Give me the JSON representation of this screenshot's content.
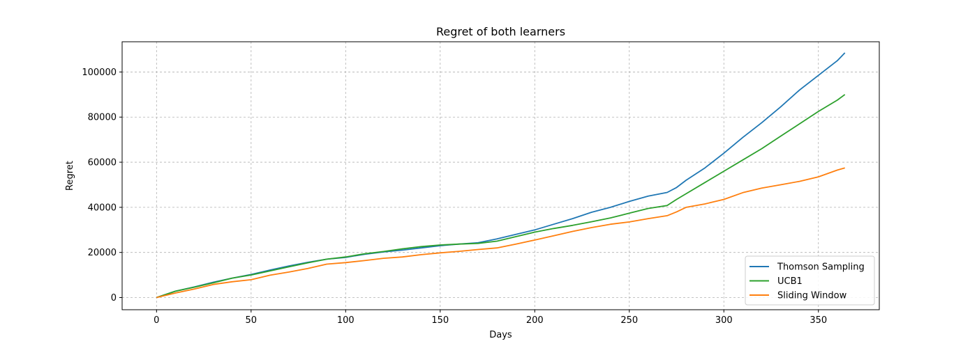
{
  "chart_data": {
    "type": "line",
    "title": "Regret of both learners",
    "xlabel": "Days",
    "ylabel": "Regret",
    "xlim": [
      -18.2,
      382.2
    ],
    "ylim": [
      -5400,
      113400
    ],
    "xticks": [
      0,
      50,
      100,
      150,
      200,
      250,
      300,
      350
    ],
    "yticks": [
      0,
      20000,
      40000,
      60000,
      80000,
      100000
    ],
    "grid": true,
    "legend_position": "lower-right",
    "series": [
      {
        "name": "Thomson Sampling",
        "color": "#1f77b4",
        "points": [
          [
            0,
            0
          ],
          [
            10,
            2800
          ],
          [
            20,
            4700
          ],
          [
            30,
            6800
          ],
          [
            40,
            8600
          ],
          [
            50,
            10200
          ],
          [
            60,
            12200
          ],
          [
            70,
            14000
          ],
          [
            80,
            15600
          ],
          [
            90,
            17000
          ],
          [
            100,
            17800
          ],
          [
            110,
            19200
          ],
          [
            120,
            20200
          ],
          [
            130,
            21000
          ],
          [
            140,
            22000
          ],
          [
            150,
            23000
          ],
          [
            160,
            23700
          ],
          [
            170,
            24300
          ],
          [
            180,
            26000
          ],
          [
            190,
            28000
          ],
          [
            200,
            30000
          ],
          [
            210,
            32500
          ],
          [
            220,
            35000
          ],
          [
            230,
            37800
          ],
          [
            240,
            40000
          ],
          [
            250,
            42600
          ],
          [
            260,
            45000
          ],
          [
            270,
            46600
          ],
          [
            275,
            48800
          ],
          [
            280,
            52000
          ],
          [
            290,
            57500
          ],
          [
            300,
            64000
          ],
          [
            310,
            71000
          ],
          [
            320,
            77500
          ],
          [
            330,
            84500
          ],
          [
            340,
            92000
          ],
          [
            350,
            98500
          ],
          [
            360,
            105000
          ],
          [
            364,
            108500
          ]
        ]
      },
      {
        "name": "UCB1",
        "color": "#2ca02c",
        "points": [
          [
            0,
            0
          ],
          [
            10,
            2800
          ],
          [
            20,
            4600
          ],
          [
            30,
            6500
          ],
          [
            40,
            8600
          ],
          [
            50,
            10000
          ],
          [
            60,
            11800
          ],
          [
            70,
            13600
          ],
          [
            80,
            15400
          ],
          [
            90,
            17000
          ],
          [
            100,
            18000
          ],
          [
            110,
            19400
          ],
          [
            120,
            20400
          ],
          [
            130,
            21600
          ],
          [
            140,
            22600
          ],
          [
            150,
            23300
          ],
          [
            160,
            23700
          ],
          [
            170,
            24000
          ],
          [
            180,
            25000
          ],
          [
            190,
            27000
          ],
          [
            200,
            29000
          ],
          [
            210,
            30600
          ],
          [
            220,
            32000
          ],
          [
            230,
            33600
          ],
          [
            240,
            35300
          ],
          [
            250,
            37400
          ],
          [
            260,
            39500
          ],
          [
            270,
            40800
          ],
          [
            275,
            43500
          ],
          [
            280,
            46000
          ],
          [
            290,
            51000
          ],
          [
            300,
            56000
          ],
          [
            310,
            61000
          ],
          [
            320,
            66000
          ],
          [
            330,
            71500
          ],
          [
            340,
            77000
          ],
          [
            350,
            82500
          ],
          [
            360,
            87500
          ],
          [
            364,
            90000
          ]
        ]
      },
      {
        "name": "Sliding Window",
        "color": "#ff7f0e",
        "points": [
          [
            0,
            0
          ],
          [
            10,
            2000
          ],
          [
            20,
            3800
          ],
          [
            30,
            5800
          ],
          [
            40,
            7000
          ],
          [
            50,
            7900
          ],
          [
            60,
            9900
          ],
          [
            70,
            11300
          ],
          [
            80,
            12900
          ],
          [
            90,
            14800
          ],
          [
            100,
            15500
          ],
          [
            110,
            16400
          ],
          [
            120,
            17400
          ],
          [
            130,
            18000
          ],
          [
            140,
            19000
          ],
          [
            150,
            19800
          ],
          [
            160,
            20500
          ],
          [
            170,
            21300
          ],
          [
            180,
            22000
          ],
          [
            190,
            23700
          ],
          [
            200,
            25500
          ],
          [
            210,
            27400
          ],
          [
            220,
            29300
          ],
          [
            230,
            31000
          ],
          [
            240,
            32500
          ],
          [
            250,
            33500
          ],
          [
            260,
            35000
          ],
          [
            270,
            36300
          ],
          [
            275,
            38000
          ],
          [
            280,
            40000
          ],
          [
            290,
            41500
          ],
          [
            300,
            43500
          ],
          [
            310,
            46500
          ],
          [
            320,
            48500
          ],
          [
            330,
            50000
          ],
          [
            340,
            51500
          ],
          [
            350,
            53500
          ],
          [
            360,
            56500
          ],
          [
            364,
            57500
          ]
        ]
      }
    ]
  }
}
